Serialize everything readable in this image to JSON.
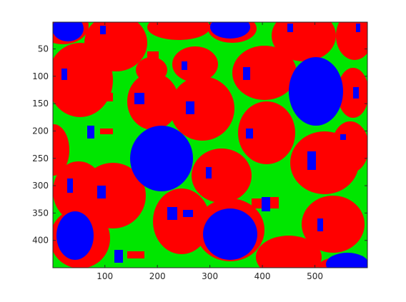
{
  "image": {
    "description_type": "segmentation-map",
    "colors": {
      "background": "#00e600",
      "cell": "#ff0000",
      "nucleus": "#0000ff",
      "axes": "#262626",
      "figure_bg": "#ffffff"
    },
    "x_range": [
      1,
      600
    ],
    "y_range": [
      1,
      450
    ],
    "x_ticks": [
      {
        "value": 100,
        "label": "100"
      },
      {
        "value": 200,
        "label": "200"
      },
      {
        "value": 300,
        "label": "300"
      },
      {
        "value": 400,
        "label": "400"
      },
      {
        "value": 500,
        "label": "500"
      }
    ],
    "y_ticks": [
      {
        "value": 50,
        "label": "50"
      },
      {
        "value": 100,
        "label": "100"
      },
      {
        "value": 150,
        "label": "150"
      },
      {
        "value": 200,
        "label": "200"
      },
      {
        "value": 250,
        "label": "250"
      },
      {
        "value": 300,
        "label": "300"
      },
      {
        "value": 350,
        "label": "350"
      },
      {
        "value": 400,
        "label": "400"
      }
    ]
  }
}
